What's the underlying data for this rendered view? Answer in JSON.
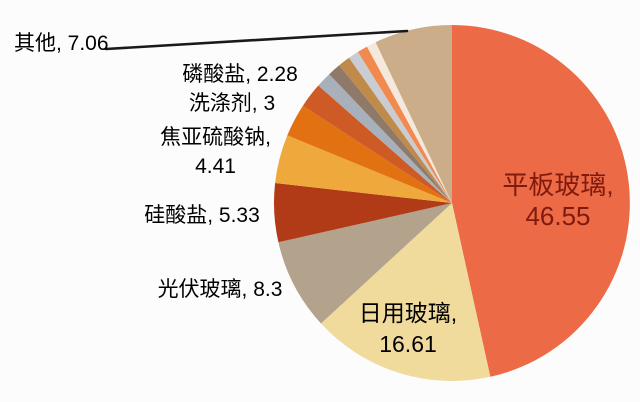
{
  "page": {
    "background_color": "#FCFCFC",
    "title": ""
  },
  "chart_data": {
    "type": "pie",
    "title": "",
    "value_unit": "percent",
    "start_angle_deg": 0,
    "direction": "clockwise",
    "legend": "none",
    "label_format": "name, value",
    "segments": [
      {
        "name": "平板玻璃",
        "value": 46.55,
        "color": "#EC6A45",
        "labeled": true
      },
      {
        "name": "日用玻璃",
        "value": 16.61,
        "color": "#F0DB9D",
        "labeled": true
      },
      {
        "name": "光伏玻璃",
        "value": 8.3,
        "color": "#B3A28C",
        "labeled": true
      },
      {
        "name": "硅酸盐",
        "value": 5.33,
        "color": "#B23B17",
        "labeled": true
      },
      {
        "name": "焦亚硫酸钠",
        "value": 4.41,
        "color": "#EFA83C",
        "labeled": true
      },
      {
        "name": "洗涤剂",
        "value": 3,
        "color": "#E27112",
        "labeled": true
      },
      {
        "name": "磷酸盐",
        "value": 2.28,
        "color": "#CE5A25",
        "labeled": true
      },
      {
        "name": "",
        "value": 1.4,
        "color": "#A8B0BC",
        "labeled": false
      },
      {
        "name": "",
        "value": 1.2,
        "color": "#8F7968",
        "labeled": false
      },
      {
        "name": "",
        "value": 1.1,
        "color": "#C08A4B",
        "labeled": false
      },
      {
        "name": "",
        "value": 0.95,
        "color": "#C9CCD2",
        "labeled": false
      },
      {
        "name": "",
        "value": 0.95,
        "color": "#F28A50",
        "labeled": false
      },
      {
        "name": "",
        "value": 0.86,
        "color": "#F4E9DC",
        "labeled": false
      },
      {
        "name": "其他",
        "value": 7.06,
        "color": "#CBAD89",
        "labeled": true
      }
    ]
  },
  "labels": {
    "qita": {
      "text": "其他, 7.06"
    },
    "linsuanyan": {
      "text": "磷酸盐, 2.28"
    },
    "xidijie": {
      "text": "洗涤剂, 3"
    },
    "jiaoyaliusuanna": {
      "line1": "焦亚硫酸钠,",
      "line2": "4.41"
    },
    "guisuanyan": {
      "text": "硅酸盐, 5.33"
    },
    "guangfuboli": {
      "text": "光伏玻璃, 8.3"
    },
    "riyongboli": {
      "line1": "日用玻璃,",
      "line2": "16.61"
    },
    "pingbanboli": {
      "line1": "平板玻璃,",
      "line2": "46.55"
    }
  },
  "colors": {
    "label_text": "#000000",
    "pingban_label_text": "#7F1A0D",
    "leader_line": "#1A1A1A"
  }
}
